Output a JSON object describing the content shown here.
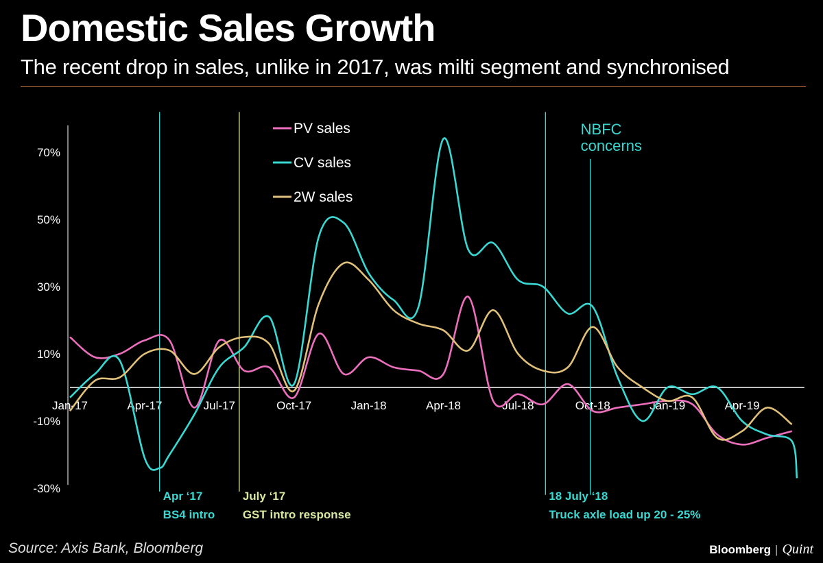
{
  "header": {
    "title": "Domestic Sales Growth",
    "subtitle": "The recent drop in sales, unlike in 2017, was milti segment and synchronised"
  },
  "footer": {
    "source": "Source: Axis Bank, Bloomberg",
    "brand_main": "Bloomberg",
    "brand_sep": "|",
    "brand_sub": "Quint"
  },
  "colors": {
    "pv": "#ec6fbd",
    "cv": "#3ad8d2",
    "tw": "#e0c07a",
    "axis": "#ffffff",
    "annotation_cyan": "#3ad8d2",
    "annotation_lime": "#d8e8a0"
  },
  "chart_data": {
    "type": "line",
    "title": "Domestic Sales Growth",
    "x": [
      0,
      1,
      2,
      3,
      4,
      5,
      6,
      7,
      8,
      9,
      10,
      11,
      12,
      13,
      14,
      15,
      16,
      17,
      18,
      19,
      20,
      21,
      22,
      23,
      24,
      25,
      26,
      27,
      28
    ],
    "x_tick_positions": [
      0,
      3,
      6,
      9,
      12,
      15,
      18,
      21,
      24,
      27
    ],
    "x_tick_labels": [
      "Jan-17",
      "Apr-17",
      "Jul-17",
      "Oct-17",
      "Jan-18",
      "Apr-18",
      "Jul-18",
      "Oct-18",
      "Jan-19",
      "Apr-19"
    ],
    "y_ticks": [
      70,
      50,
      30,
      10,
      -10,
      -30
    ],
    "y_tick_labels": [
      "70%",
      "50%",
      "30%",
      "10%",
      "-10%",
      "-30%"
    ],
    "ylim": [
      -31,
      80
    ],
    "xlim": [
      0,
      29.5
    ],
    "legend": [
      "PV sales",
      "CV sales",
      "2W sales"
    ],
    "legend_position": "top-center",
    "series": [
      {
        "name": "PV sales",
        "color_key": "pv",
        "x": [
          0,
          1,
          2,
          3,
          4,
          5,
          6,
          7,
          8,
          9,
          10,
          11,
          12,
          13,
          14,
          15,
          16,
          17,
          18,
          19,
          20,
          21,
          22,
          23,
          24,
          25,
          26,
          27,
          28,
          29
        ],
        "values": [
          15,
          9,
          10,
          14,
          14,
          -6,
          14,
          5,
          6,
          -3,
          16,
          4,
          9,
          6,
          5,
          4,
          27,
          -4,
          -2,
          -5,
          1,
          -7,
          -6,
          -5,
          -4,
          -5,
          -14,
          -17,
          -15,
          -13
        ]
      },
      {
        "name": "CV sales",
        "color_key": "cv",
        "x": [
          0,
          1,
          2,
          3,
          3.6,
          4,
          5,
          6,
          7,
          8,
          9,
          10,
          11,
          12,
          13,
          14,
          15,
          16,
          17,
          18,
          19,
          20,
          21,
          22,
          23,
          24,
          25,
          26,
          27,
          28,
          29,
          29.2
        ],
        "values": [
          -3,
          4,
          8,
          -21,
          -24,
          -20,
          -8,
          6,
          12,
          21,
          1,
          45,
          49,
          34,
          26,
          24,
          74,
          41,
          43,
          32,
          30,
          22,
          24,
          3,
          -10,
          0,
          -2,
          0,
          -10,
          -14,
          -16,
          -27
        ]
      },
      {
        "name": "2W sales",
        "color_key": "tw",
        "x": [
          0,
          1,
          2,
          3,
          4,
          5,
          6,
          7,
          8,
          9,
          10,
          11,
          12,
          13,
          14,
          15,
          16,
          17,
          18,
          19,
          20,
          21,
          22,
          23,
          24,
          25,
          26,
          27,
          28,
          29
        ],
        "values": [
          -7,
          2,
          3,
          10,
          11,
          4,
          12,
          15,
          13,
          -1,
          25,
          37,
          32,
          23,
          19,
          17,
          11,
          23,
          10,
          5,
          6,
          18,
          6,
          0,
          -4,
          -3,
          -15,
          -13,
          -6,
          -11
        ]
      }
    ],
    "annotations": [
      {
        "x": 3.6,
        "line_top": 82,
        "line_bottom": -31,
        "label1": "Apr ‘17",
        "label2": "BS4 intro",
        "color_key": "annotation_cyan"
      },
      {
        "x": 6.8,
        "line_top": 82,
        "line_bottom": -31,
        "label1": "July ‘17",
        "label2": "GST intro response",
        "color_key": "annotation_lime"
      },
      {
        "x": 19.1,
        "line_top": 82,
        "line_bottom": -32,
        "label1": "18 July ‘18",
        "label2": "Truck axle load up 20 - 25%",
        "color_key": "annotation_cyan"
      },
      {
        "x": 20.9,
        "line_top": 68,
        "line_bottom": -32,
        "label1": "NBFC",
        "label2": "concerns",
        "color_key": "annotation_cyan",
        "label_above": true
      }
    ]
  }
}
